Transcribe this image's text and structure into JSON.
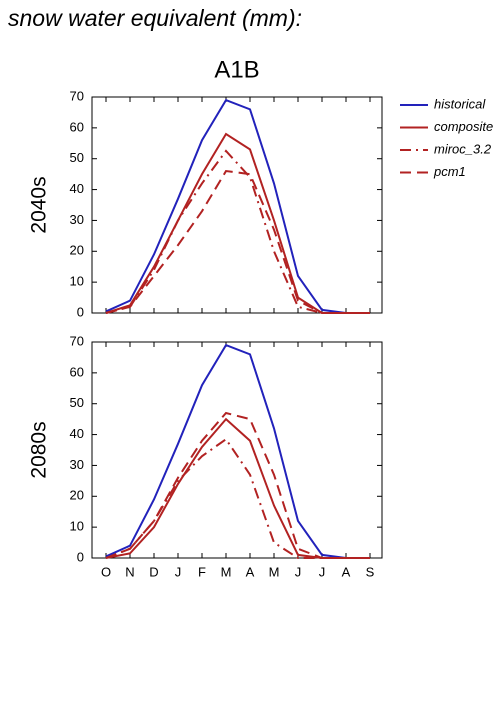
{
  "header": {
    "title": "snow water equivalent (mm):",
    "subtitle": "A1B"
  },
  "chart_data": [
    {
      "type": "line",
      "ylabel": "2040s",
      "ylim": [
        0,
        70
      ],
      "yticks": [
        0,
        10,
        20,
        30,
        40,
        50,
        60,
        70
      ],
      "legend": "right-outside",
      "series": [
        {
          "name": "historical",
          "color": "#2222bb",
          "line_style": "solid",
          "values": [
            0.5,
            4,
            19,
            37,
            56,
            69,
            66,
            42,
            12,
            1,
            0,
            0
          ]
        },
        {
          "name": "composite",
          "color": "#b22222",
          "line_style": "solid",
          "values": [
            0,
            2.5,
            15,
            30,
            45,
            58,
            53,
            30,
            5,
            0,
            0,
            0
          ]
        },
        {
          "name": "miroc_3.2",
          "color": "#b22222",
          "line_style": "dashdot",
          "values": [
            0,
            2,
            14,
            30,
            42,
            52.5,
            44,
            20,
            2,
            0,
            0,
            0
          ]
        },
        {
          "name": "pcm1",
          "color": "#b22222",
          "line_style": "dash",
          "values": [
            0,
            2,
            12,
            22,
            33,
            46,
            45,
            27,
            4,
            0,
            0,
            0
          ]
        }
      ]
    },
    {
      "type": "line",
      "ylabel": "2080s",
      "ylim": [
        0,
        70
      ],
      "yticks": [
        0,
        10,
        20,
        30,
        40,
        50,
        60,
        70
      ],
      "categories": [
        "O",
        "N",
        "D",
        "J",
        "F",
        "M",
        "A",
        "M",
        "J",
        "J",
        "A",
        "S"
      ],
      "series": [
        {
          "color": "#2222bb",
          "line_style": "solid",
          "values": [
            0.5,
            4,
            19,
            37,
            56,
            69,
            66,
            42,
            12,
            1,
            0,
            0
          ]
        },
        {
          "color": "#b22222",
          "line_style": "solid",
          "values": [
            0,
            1.5,
            10,
            24,
            36,
            45,
            38,
            17,
            1,
            0,
            0,
            0
          ]
        },
        {
          "color": "#b22222",
          "line_style": "dashdot",
          "values": [
            0,
            3,
            12,
            25,
            33,
            38.5,
            27,
            5,
            0,
            0,
            0,
            0
          ]
        },
        {
          "color": "#b22222",
          "line_style": "dash",
          "values": [
            0,
            3,
            12,
            26,
            38,
            47,
            45,
            27,
            3,
            0,
            0,
            0
          ]
        }
      ]
    }
  ]
}
